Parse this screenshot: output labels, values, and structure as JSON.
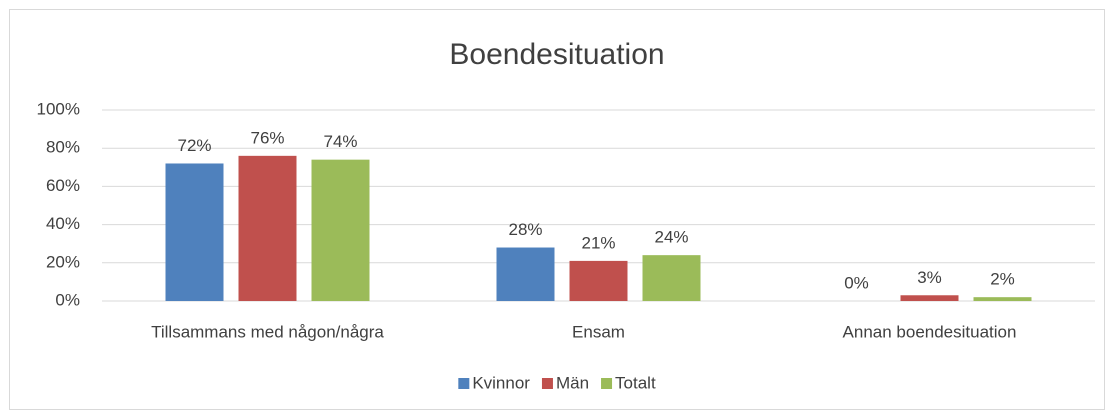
{
  "chart_data": {
    "type": "bar",
    "title": "Boendesituation",
    "categories": [
      "Tillsammans med någon/några",
      "Ensam",
      "Annan boendesituation"
    ],
    "series": [
      {
        "name": "Kvinnor",
        "color": "#4f81bd",
        "values": [
          72,
          28,
          0
        ],
        "value_labels": [
          "72%",
          "28%",
          "0%"
        ]
      },
      {
        "name": "Män",
        "color": "#c0504d",
        "values": [
          76,
          21,
          3
        ],
        "value_labels": [
          "76%",
          "21%",
          "3%"
        ]
      },
      {
        "name": "Totalt",
        "color": "#9bbb59",
        "values": [
          74,
          24,
          2
        ],
        "value_labels": [
          "74%",
          "24%",
          "2%"
        ]
      }
    ],
    "ylim": [
      0,
      100
    ],
    "yticks": [
      {
        "value": 0,
        "label": "0%"
      },
      {
        "value": 20,
        "label": "20%"
      },
      {
        "value": 40,
        "label": "40%"
      },
      {
        "value": 60,
        "label": "60%"
      },
      {
        "value": 80,
        "label": "80%"
      },
      {
        "value": 100,
        "label": "100%"
      }
    ],
    "grid": true,
    "legend": "bottom"
  }
}
